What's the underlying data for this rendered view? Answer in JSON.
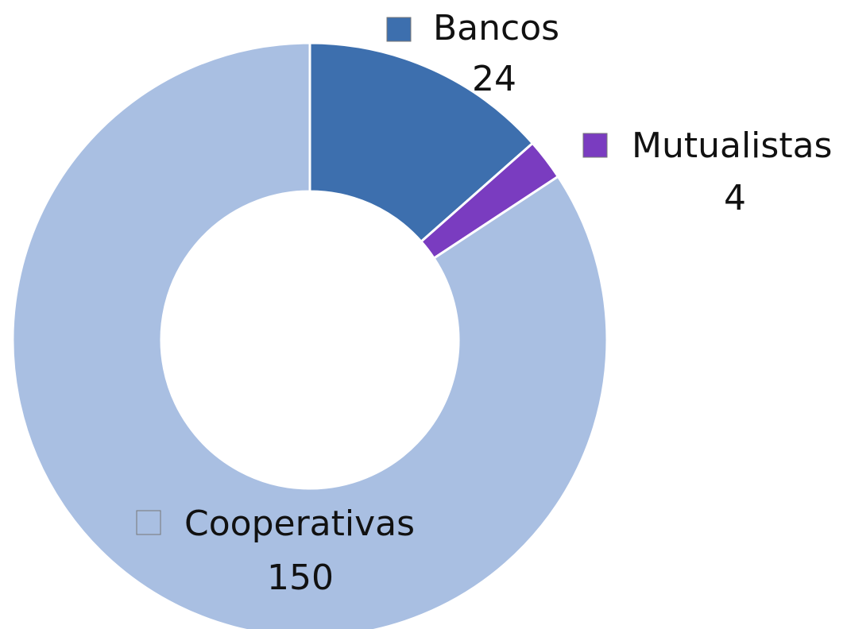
{
  "chart_data": {
    "type": "donut",
    "categories": [
      "Bancos",
      "Mutualistas",
      "Cooperativas"
    ],
    "values": [
      24,
      4,
      150
    ],
    "colors": [
      "#3d6fae",
      "#7a3cc0",
      "#a9bfe2"
    ]
  }
}
